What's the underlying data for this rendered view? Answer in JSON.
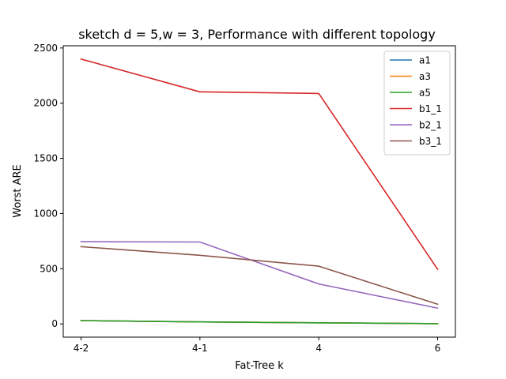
{
  "chart_data": {
    "type": "line",
    "title": "sketch d = 5,w = 3, Performance with different topology",
    "xlabel": "Fat-Tree k",
    "ylabel": "Worst ARE",
    "categories": [
      "4-2",
      "4-1",
      "4",
      "6"
    ],
    "ylim": [
      -120,
      2520
    ],
    "yticks": [
      0,
      500,
      1000,
      1500,
      2000,
      2500
    ],
    "grid": false,
    "legend_position": "top-right",
    "series": [
      {
        "name": "a1",
        "color": "#1f77b4",
        "values": [
          30,
          18,
          10,
          2
        ]
      },
      {
        "name": "a3",
        "color": "#ff7f0e",
        "values": [
          30,
          18,
          10,
          2
        ]
      },
      {
        "name": "a5",
        "color": "#2ca02c",
        "values": [
          30,
          18,
          10,
          2
        ]
      },
      {
        "name": "b1_1",
        "color": "#d62728",
        "values": [
          2400,
          2103,
          2088,
          495
        ]
      },
      {
        "name": "b2_1",
        "color": "#9467bd",
        "values": [
          745,
          742,
          362,
          143
        ]
      },
      {
        "name": "b3_1",
        "color": "#8c564b",
        "values": [
          700,
          622,
          523,
          178
        ]
      }
    ]
  }
}
